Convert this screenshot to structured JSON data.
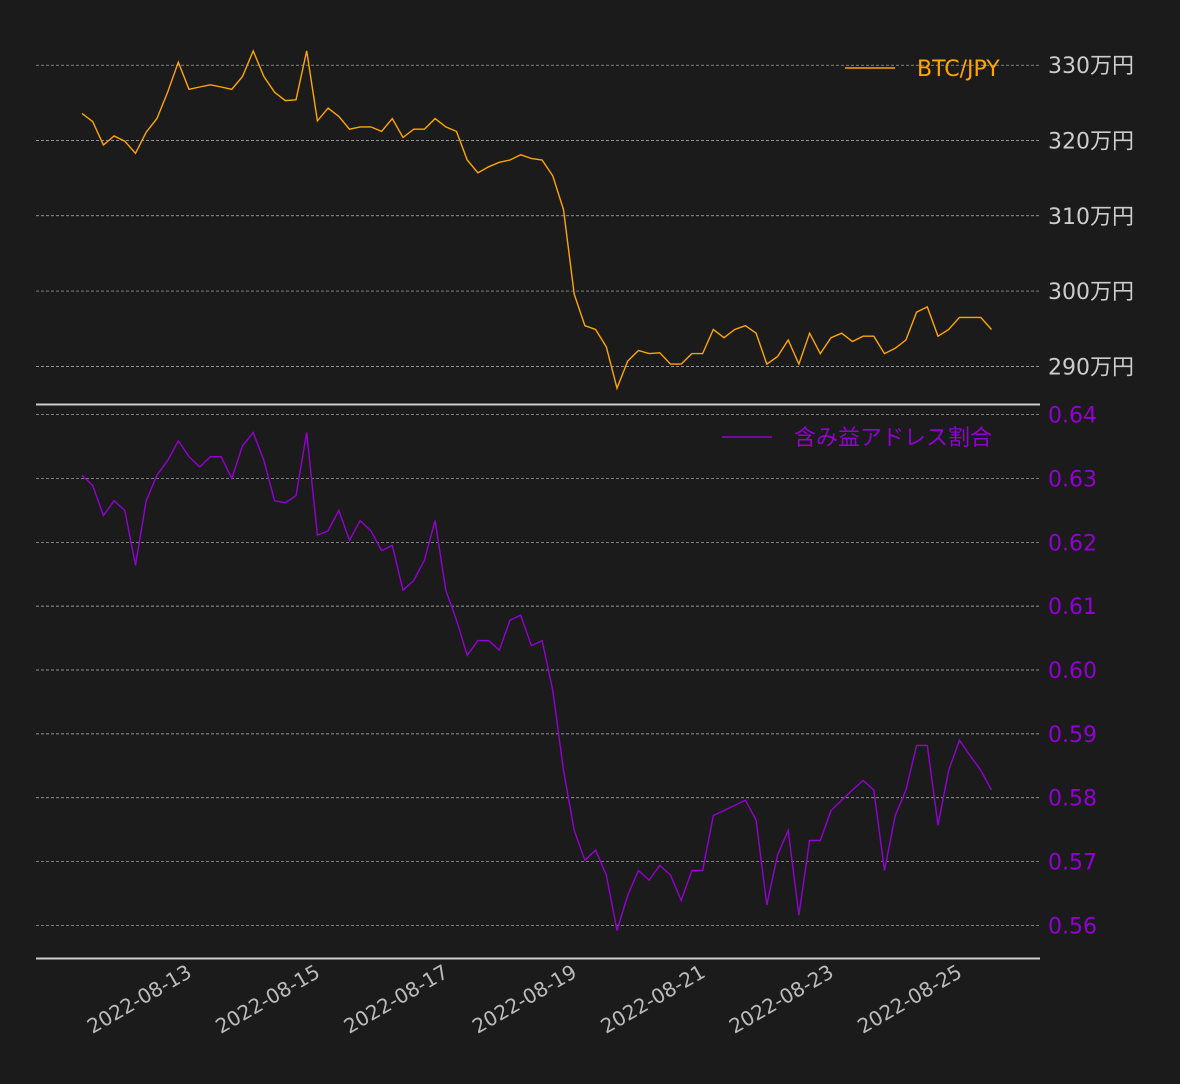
{
  "chart_data": [
    {
      "type": "line",
      "series_name": "BTC/JPY",
      "color": "#ffa500",
      "start": "2022-08-11 05:00",
      "step_hours": 4,
      "unit": "万円",
      "ylim": [
        285,
        336
      ],
      "yticks": [
        290,
        300,
        310,
        320,
        330
      ],
      "ytick_labels": [
        "290万円",
        "300万円",
        "310万円",
        "320万円",
        "330万円"
      ],
      "legend": "top-right",
      "grid": true,
      "values": [
        323.6,
        322.5,
        319.4,
        320.6,
        319.9,
        318.3,
        321.1,
        322.9,
        326.4,
        330.4,
        326.8,
        327.1,
        327.4,
        327.1,
        326.8,
        328.5,
        331.9,
        328.5,
        326.4,
        325.3,
        325.4,
        331.9,
        322.6,
        324.3,
        323.2,
        321.5,
        321.8,
        321.8,
        321.2,
        322.9,
        320.4,
        321.5,
        321.5,
        322.9,
        321.8,
        321.2,
        317.4,
        315.7,
        316.5,
        317.1,
        317.4,
        318.1,
        317.6,
        317.4,
        315.3,
        310.8,
        299.6,
        295.4,
        294.9,
        292.6,
        287.1,
        290.7,
        292.1,
        291.7,
        291.8,
        290.3,
        290.3,
        291.7,
        291.7,
        294.9,
        293.8,
        294.9,
        295.4,
        294.4,
        290.3,
        291.3,
        293.5,
        290.3,
        294.4,
        291.7,
        293.8,
        294.4,
        293.3,
        294.0,
        294.0,
        291.7,
        292.4,
        293.5,
        297.2,
        297.9,
        294.0,
        294.9,
        296.5,
        296.5,
        296.5,
        294.9
      ]
    },
    {
      "type": "line",
      "series_name": "含み益アドレス割合",
      "color": "#9400d3",
      "start": "2022-08-11 05:00",
      "step_hours": 4,
      "ylim": [
        0.5549,
        0.6415
      ],
      "yticks": [
        0.56,
        0.57,
        0.58,
        0.59,
        0.6,
        0.61,
        0.62,
        0.63,
        0.64
      ],
      "ytick_labels": [
        "0.56",
        "0.57",
        "0.58",
        "0.59",
        "0.60",
        "0.61",
        "0.62",
        "0.63",
        "0.64"
      ],
      "legend": "top-right",
      "grid": true,
      "values": [
        0.6305,
        0.6289,
        0.6242,
        0.6265,
        0.625,
        0.6164,
        0.6265,
        0.6305,
        0.6328,
        0.6359,
        0.6334,
        0.6318,
        0.6334,
        0.6334,
        0.63,
        0.6351,
        0.6372,
        0.6328,
        0.6265,
        0.6262,
        0.6273,
        0.6372,
        0.6211,
        0.6218,
        0.625,
        0.6203,
        0.6234,
        0.6218,
        0.6187,
        0.6195,
        0.6125,
        0.614,
        0.6172,
        0.6234,
        0.6125,
        0.6078,
        0.6023,
        0.6046,
        0.6046,
        0.6031,
        0.6078,
        0.6086,
        0.6038,
        0.6046,
        0.5968,
        0.5843,
        0.5749,
        0.5702,
        0.5718,
        0.5679,
        0.5592,
        0.5647,
        0.5686,
        0.5671,
        0.5694,
        0.5679,
        0.5639,
        0.5686,
        0.5686,
        0.5772,
        0.578,
        0.5788,
        0.5796,
        0.5765,
        0.5632,
        0.571,
        0.5749,
        0.5616,
        0.5733,
        0.5733,
        0.578,
        0.5796,
        0.5812,
        0.5827,
        0.5812,
        0.5686,
        0.5772,
        0.5812,
        0.5882,
        0.5882,
        0.5757,
        0.5843,
        0.589,
        0.5866,
        0.5843,
        0.5812
      ]
    }
  ],
  "x_axis": {
    "ticks": [
      "2022-08-13",
      "2022-08-15",
      "2022-08-17",
      "2022-08-19",
      "2022-08-21",
      "2022-08-23",
      "2022-08-25"
    ],
    "tick_days_from_2022_08_11": [
      2,
      4,
      6,
      8,
      10,
      12,
      14
    ]
  },
  "legend": {
    "btc": "BTC/JPY",
    "ratio": "含み益アドレス割合"
  }
}
